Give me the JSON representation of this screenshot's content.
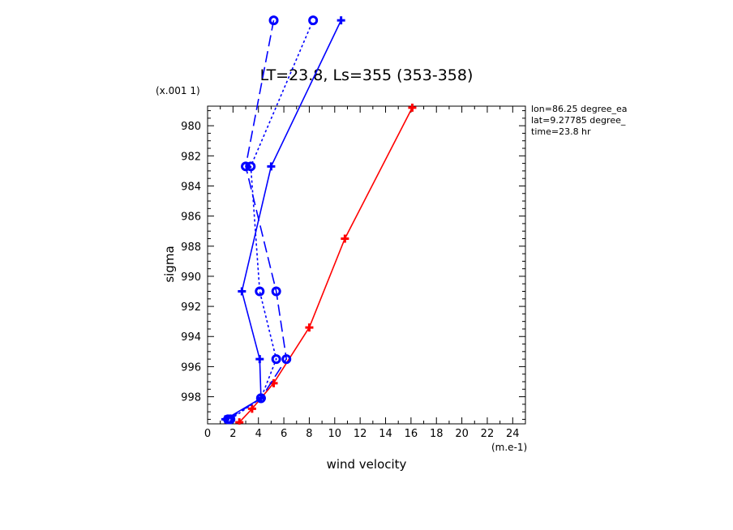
{
  "chart_data": {
    "type": "line",
    "title": "LT=23.8, Ls=355 (353-358)",
    "xlabel": "wind velocity",
    "ylabel": "sigma",
    "x_unit": "(m.e-1)",
    "y_unit": "(x.001 1)",
    "xlim": [
      0,
      25
    ],
    "ylim": [
      999.8,
      978.7
    ],
    "x_ticks": [
      "0",
      "2",
      "4",
      "6",
      "8",
      "10",
      "12",
      "14",
      "16",
      "18",
      "20",
      "22",
      "24"
    ],
    "y_ticks": [
      "980",
      "982",
      "984",
      "986",
      "988",
      "990",
      "992",
      "994",
      "996",
      "998"
    ],
    "info": [
      "lon=86.25 degree_ea",
      "lat=9.27785 degree_",
      "time=23.8 hr"
    ],
    "series": [
      {
        "color": "#ff0000",
        "dash": "solid",
        "marker": "plus",
        "x": [
          2.5,
          3.5,
          5.2,
          8.0,
          10.8,
          16.1
        ],
        "y": [
          999.7,
          998.8,
          997.1,
          993.4,
          987.5,
          978.8
        ]
      },
      {
        "color": "#0000ff",
        "dash": "solid",
        "marker": "plus",
        "x": [
          1.4,
          4.2,
          4.1,
          2.7,
          5.0,
          10.5
        ],
        "y": [
          999.5,
          998.1,
          995.5,
          991.0,
          982.7,
          973.0
        ]
      },
      {
        "color": "#0000ff",
        "dash": "dash",
        "marker": "circle",
        "x": [
          1.6,
          4.2,
          6.2,
          5.4,
          3.0,
          5.2
        ],
        "y": [
          999.5,
          998.1,
          995.5,
          991.0,
          982.7,
          973.0
        ]
      },
      {
        "color": "#0000ff",
        "dash": "dot",
        "marker": "circle",
        "x": [
          1.8,
          4.2,
          5.4,
          4.1,
          3.4,
          8.3
        ],
        "y": [
          999.5,
          998.1,
          995.5,
          991.0,
          982.7,
          973.0
        ]
      }
    ]
  }
}
